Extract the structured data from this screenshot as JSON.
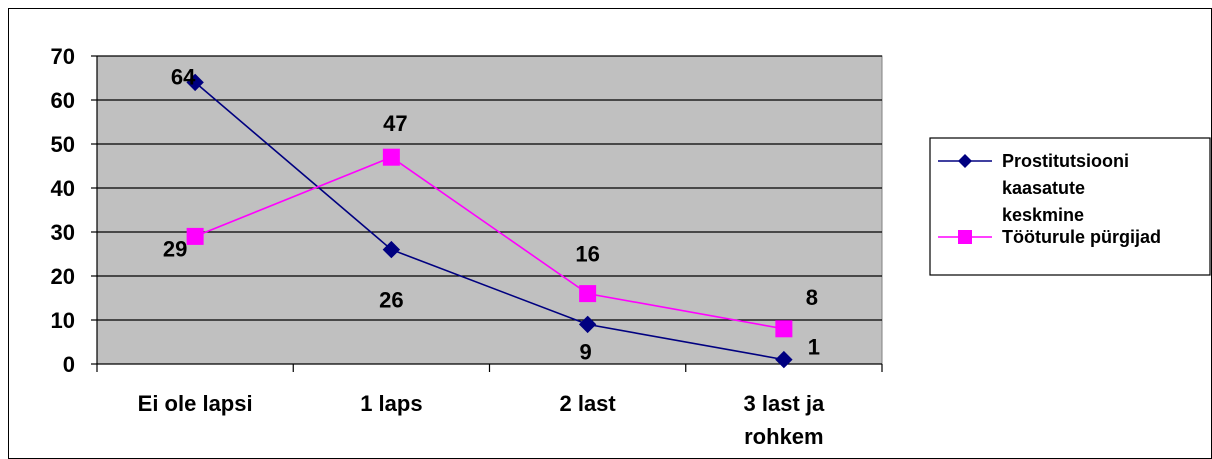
{
  "chart_data": {
    "type": "line",
    "categories": [
      [
        "Ei ole lapsi"
      ],
      [
        "1 laps"
      ],
      [
        "2 last"
      ],
      [
        "3 last ja",
        "rohkem"
      ]
    ],
    "ylim": [
      0,
      70
    ],
    "yticks": [
      0,
      10,
      20,
      30,
      40,
      50,
      60,
      70
    ],
    "grid": true,
    "legend_position": "right",
    "series": [
      {
        "name": [
          "Prostitutsiooni",
          "kaasatute",
          "keskmine"
        ],
        "values": [
          64,
          26,
          9,
          1
        ],
        "color": "#000080",
        "marker": "diamond",
        "data_labels": [
          "64",
          "26",
          "9",
          "1"
        ]
      },
      {
        "name": [
          "Tööturule pürgijad"
        ],
        "values": [
          29,
          47,
          16,
          8
        ],
        "color": "#FF00FF",
        "marker": "square",
        "data_labels": [
          "29",
          "47",
          "16",
          "8"
        ]
      }
    ],
    "colors": {
      "plot_background": "#C0C0C0",
      "gridline": "#000000"
    }
  }
}
